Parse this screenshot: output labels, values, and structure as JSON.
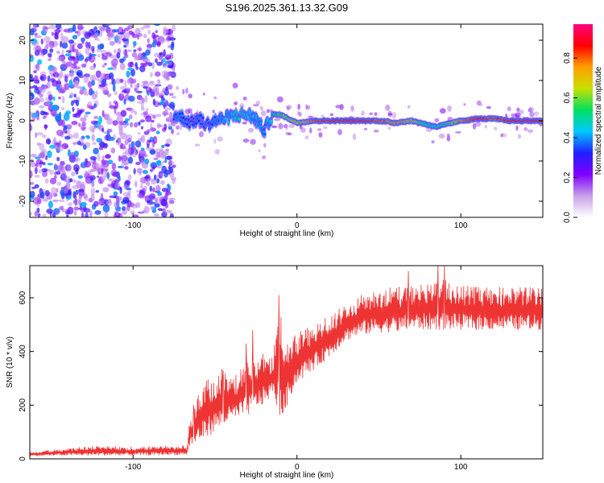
{
  "title": "S196.2025.361.13.32.G09",
  "chart_data": [
    {
      "type": "heatmap",
      "name": "spectrogram",
      "xlabel": "Height of straight line (km)",
      "ylabel": "Frequency (Hz)",
      "xlim": [
        -163,
        150
      ],
      "ylim": [
        -24,
        24
      ],
      "xticks": [
        -100,
        0,
        100
      ],
      "xtick_labels": [
        "-100",
        "0",
        "100"
      ],
      "yticks": [
        -20,
        -10,
        0,
        10,
        20
      ],
      "ytick_labels": [
        "-20",
        "-10",
        "0",
        "10",
        "20"
      ],
      "colorbar": {
        "label": "Normalized spectral amplitude",
        "range": [
          0,
          0.97
        ],
        "ticks": [
          0,
          0.2,
          0.4,
          0.6,
          0.8
        ],
        "tick_labels": [
          "0.0",
          "0.2",
          "0.4",
          "0.6",
          "0.8"
        ],
        "colors": [
          "#ffffff",
          "#c8a0e8",
          "#8000ff",
          "#2020ff",
          "#00c8ff",
          "#00e060",
          "#c8e000",
          "#ffa000",
          "#ff0000",
          "#ff0080"
        ]
      },
      "noise_region_x": [
        -163,
        -75
      ],
      "signal_trace": {
        "x": [
          -75,
          -70,
          -65,
          -60,
          -55,
          -50,
          -45,
          -40,
          -35,
          -30,
          -25,
          -20,
          -15,
          -10,
          -5,
          0,
          10,
          20,
          30,
          40,
          50,
          60,
          70,
          75,
          80,
          85,
          90,
          95,
          100,
          110,
          120,
          130,
          140,
          150
        ],
        "y": [
          1.5,
          0.8,
          -0.5,
          0.5,
          -1.0,
          0.0,
          0.5,
          1.0,
          1.5,
          1.5,
          0.5,
          -2.5,
          1.5,
          1.5,
          0.5,
          -0.5,
          0.0,
          0.0,
          0.0,
          0.0,
          0.0,
          -0.5,
          0.0,
          -0.5,
          -1.0,
          -1.5,
          -1.0,
          -0.5,
          0.0,
          0.5,
          0.5,
          0.0,
          0.0,
          0.0
        ],
        "amplitude": [
          0.3,
          0.35,
          0.25,
          0.3,
          0.3,
          0.35,
          0.4,
          0.45,
          0.5,
          0.45,
          0.4,
          0.35,
          0.5,
          0.6,
          0.65,
          0.7,
          0.85,
          0.9,
          0.9,
          0.9,
          0.85,
          0.8,
          0.75,
          0.6,
          0.55,
          0.5,
          0.55,
          0.65,
          0.8,
          0.9,
          0.85,
          0.9,
          0.95,
          0.9
        ]
      }
    },
    {
      "type": "line",
      "name": "snr",
      "xlabel": "Height of straight line (km)",
      "ylabel": "SNR (10 * v/v)",
      "xlim": [
        -163,
        150
      ],
      "ylim": [
        0,
        720
      ],
      "xticks": [
        -100,
        0,
        100
      ],
      "xtick_labels": [
        "-100",
        "0",
        "100"
      ],
      "yticks": [
        0,
        200,
        400,
        600
      ],
      "ytick_labels": [
        "0",
        "200",
        "400",
        "600"
      ],
      "color": "#ee3333",
      "envelope": {
        "x": [
          -163,
          -140,
          -120,
          -100,
          -80,
          -67,
          -66,
          -60,
          -55,
          -50,
          -45,
          -40,
          -35,
          -30,
          -25,
          -20,
          -15,
          -10,
          -8,
          -5,
          0,
          10,
          20,
          30,
          40,
          50,
          60,
          70,
          80,
          90,
          100,
          110,
          120,
          130,
          140,
          150
        ],
        "low": [
          10,
          12,
          12,
          12,
          14,
          14,
          40,
          60,
          80,
          100,
          120,
          140,
          150,
          160,
          190,
          200,
          240,
          150,
          150,
          220,
          280,
          330,
          380,
          440,
          460,
          470,
          470,
          480,
          480,
          480,
          480,
          480,
          480,
          480,
          480,
          480
        ],
        "high": [
          25,
          40,
          50,
          45,
          50,
          50,
          140,
          250,
          300,
          320,
          340,
          300,
          330,
          380,
          370,
          400,
          380,
          560,
          420,
          430,
          470,
          500,
          540,
          580,
          620,
          640,
          640,
          650,
          660,
          670,
          650,
          640,
          640,
          640,
          640,
          650
        ],
        "spikes": [
          {
            "x": -63,
            "y": 200
          },
          {
            "x": -45,
            "y": 330
          },
          {
            "x": -31,
            "y": 430
          },
          {
            "x": -27,
            "y": 480
          },
          {
            "x": -11,
            "y": 610
          },
          {
            "x": 68,
            "y": 700
          },
          {
            "x": 86,
            "y": 720
          },
          {
            "x": 90,
            "y": 720
          }
        ]
      }
    }
  ]
}
